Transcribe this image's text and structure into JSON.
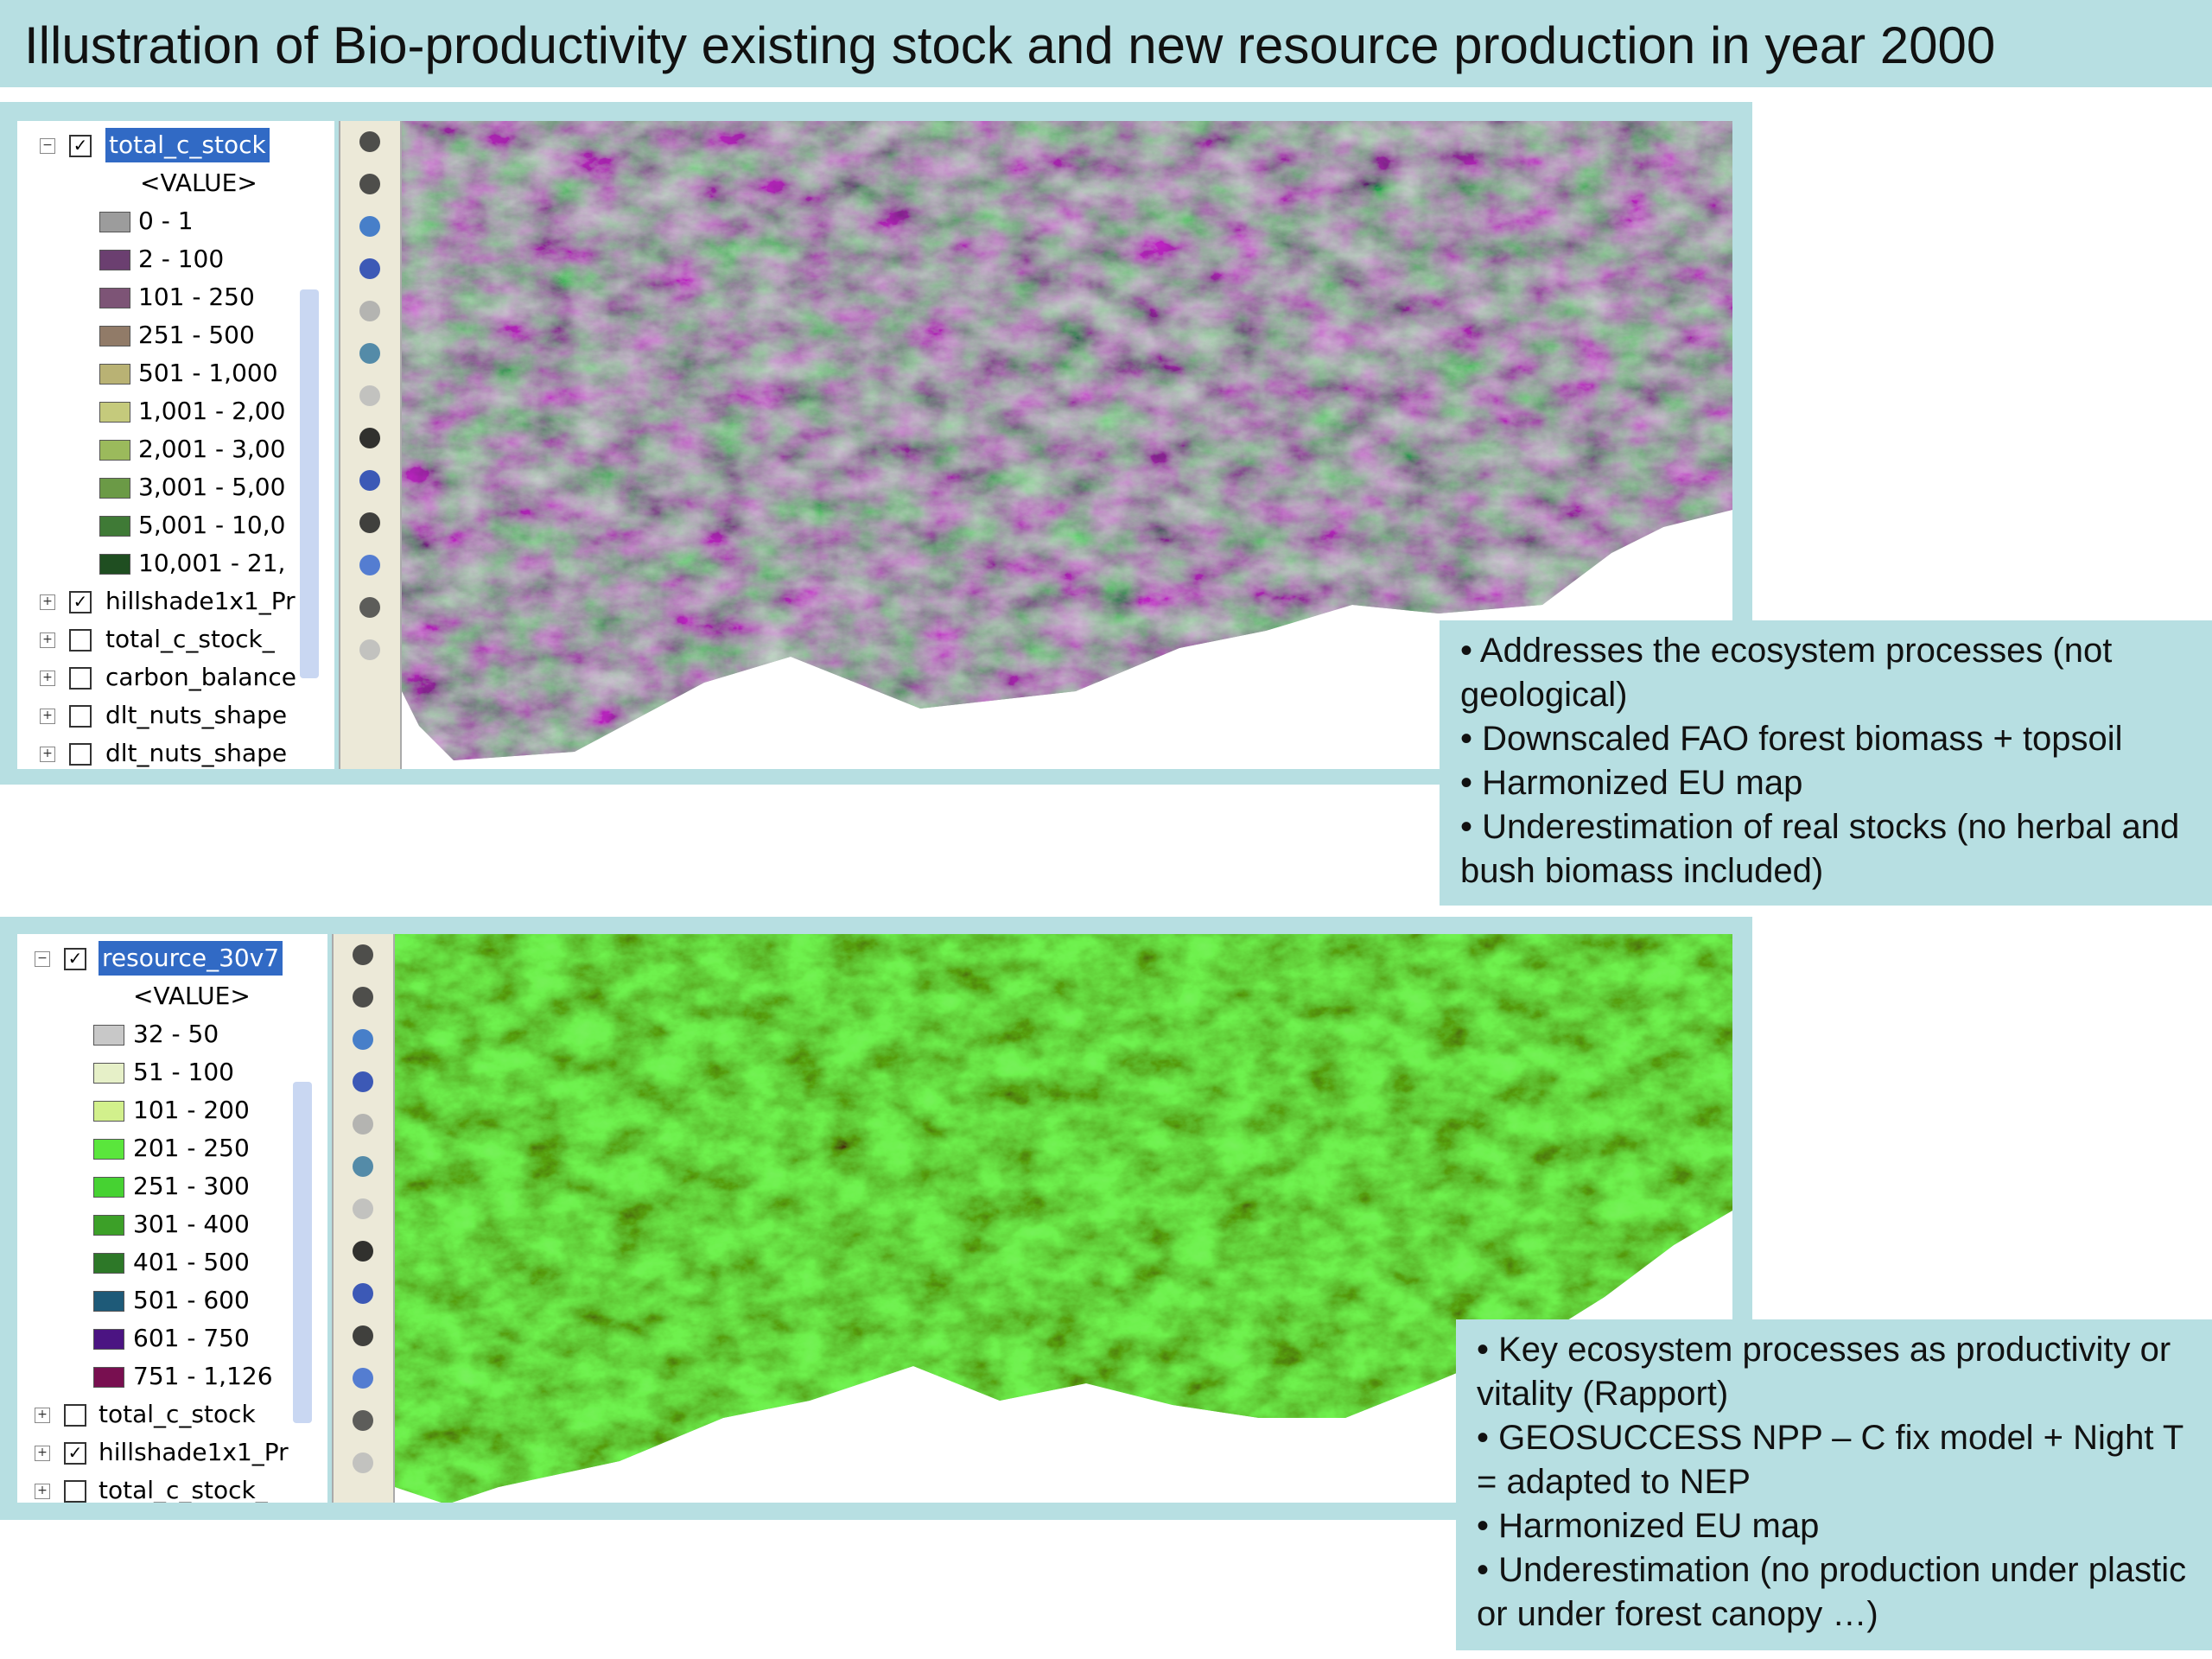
{
  "header": {
    "title": "Illustration of Bio-productivity existing stock and new resource production in year 2000"
  },
  "panels": [
    {
      "toc": {
        "active_layer": {
          "name": "total_c_stock",
          "checked": true
        },
        "field": "<VALUE>",
        "classes": [
          {
            "label": "0 - 1",
            "color": "#9c9c9c"
          },
          {
            "label": "2 - 100",
            "color": "#6b3f70"
          },
          {
            "label": "101 - 250",
            "color": "#7d5476"
          },
          {
            "label": "251 - 500",
            "color": "#917b68"
          },
          {
            "label": "501 - 1,000",
            "color": "#b9b274"
          },
          {
            "label": "1,001 - 2,00",
            "color": "#c5ca7c"
          },
          {
            "label": "2,001 - 3,00",
            "color": "#9bba5c"
          },
          {
            "label": "3,001 - 5,00",
            "color": "#6b9a46"
          },
          {
            "label": "5,001 - 10,0",
            "color": "#3f7a36"
          },
          {
            "label": "10,001 - 21,",
            "color": "#1f4e21"
          }
        ],
        "layers": [
          {
            "name": "hillshade1x1_Pr",
            "checked": true
          },
          {
            "name": "total_c_stock_",
            "checked": false
          },
          {
            "name": "carbon_balance",
            "checked": false
          },
          {
            "name": "dlt_nuts_shape",
            "checked": false
          },
          {
            "name": "dlt_nuts_shape",
            "checked": false
          }
        ]
      },
      "notes": [
        "• Addresses the ecosystem processes (not geological)",
        "• Downscaled FAO forest biomass + topsoil",
        "• Harmonized EU map",
        "• Underestimation of real stocks (no herbal and bush biomass included)"
      ]
    },
    {
      "toc": {
        "active_layer": {
          "name": "resource_30v7",
          "checked": true
        },
        "field": "<VALUE>",
        "classes": [
          {
            "label": "32 - 50",
            "color": "#c8c8c8"
          },
          {
            "label": "51 - 100",
            "color": "#e6f0c8"
          },
          {
            "label": "101 - 200",
            "color": "#d2f08c"
          },
          {
            "label": "201 - 250",
            "color": "#5ae63c"
          },
          {
            "label": "251 - 300",
            "color": "#46d232"
          },
          {
            "label": "301 - 400",
            "color": "#3ca028"
          },
          {
            "label": "401 - 500",
            "color": "#2d7828"
          },
          {
            "label": "501 - 600",
            "color": "#1e5a78"
          },
          {
            "label": "601 - 750",
            "color": "#4b1482"
          },
          {
            "label": "751 - 1,126",
            "color": "#780f50"
          }
        ],
        "layers": [
          {
            "name": "total_c_stock",
            "checked": false
          },
          {
            "name": "hillshade1x1_Pr",
            "checked": true
          },
          {
            "name": "total_c_stock_",
            "checked": false
          }
        ]
      },
      "notes": [
        "• Key ecosystem processes as productivity or vitality (Rapport)",
        "• GEOSUCCESS NPP – C fix model + Night T = adapted to NEP",
        "• Harmonized EU map",
        "• Underestimation (no production under plastic or under forest canopy …)"
      ]
    }
  ]
}
